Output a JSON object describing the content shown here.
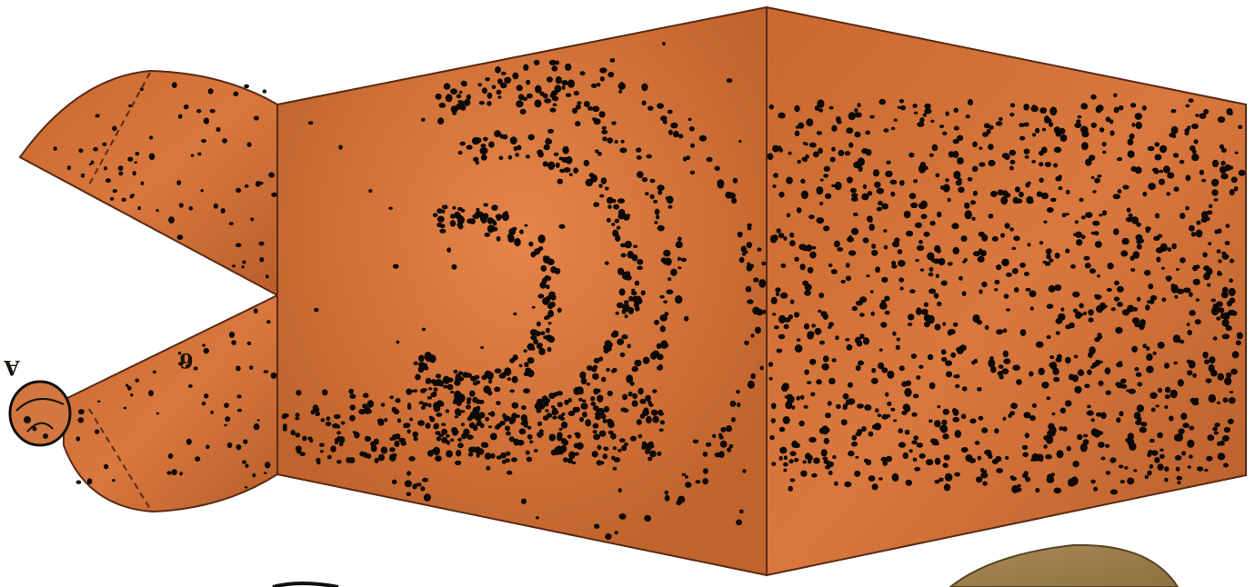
{
  "papercraft": {
    "labels": {
      "glue_tab": "A",
      "part_number": "6"
    },
    "colors": {
      "background": "#ffffff",
      "body_fill": "#c8692f",
      "body_fill_light": "#e07f45",
      "body_fill_dark": "#a9542a",
      "outline": "#5a2a14",
      "fold_line": "#5a2a14",
      "spots": "#0d0906",
      "neighbor_piece": "#a88a55",
      "tab_fill": "#d2773f"
    },
    "fold_style": "dashed",
    "glue_tab_icon": "shell-tab-icon"
  }
}
